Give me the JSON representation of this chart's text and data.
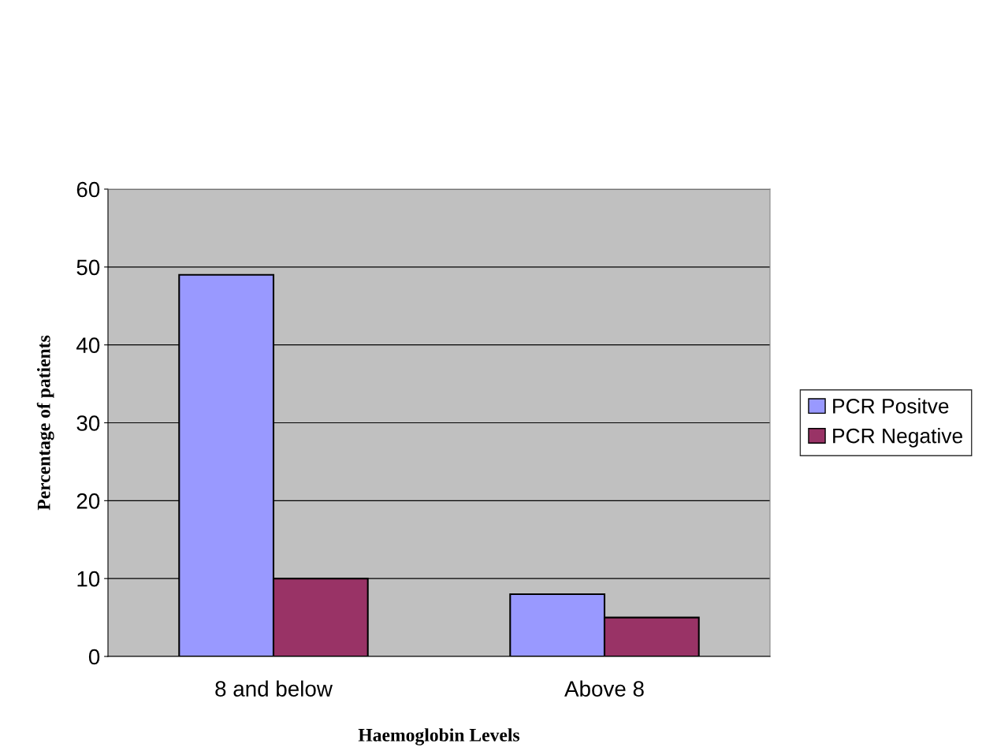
{
  "chart_data": {
    "type": "bar",
    "xlabel": "Haemoglobin Levels",
    "ylabel": "Percentage of patients",
    "categories": [
      "8 and below",
      "Above 8"
    ],
    "series": [
      {
        "name": "PCR Positve",
        "color": "#9999ff",
        "values": [
          49,
          8
        ]
      },
      {
        "name": "PCR Negative",
        "color": "#993366",
        "values": [
          10,
          5
        ]
      }
    ],
    "ylim": [
      0,
      60
    ],
    "yticks": [
      0,
      10,
      20,
      30,
      40,
      50,
      60
    ],
    "grid": "y",
    "legend": "right"
  }
}
